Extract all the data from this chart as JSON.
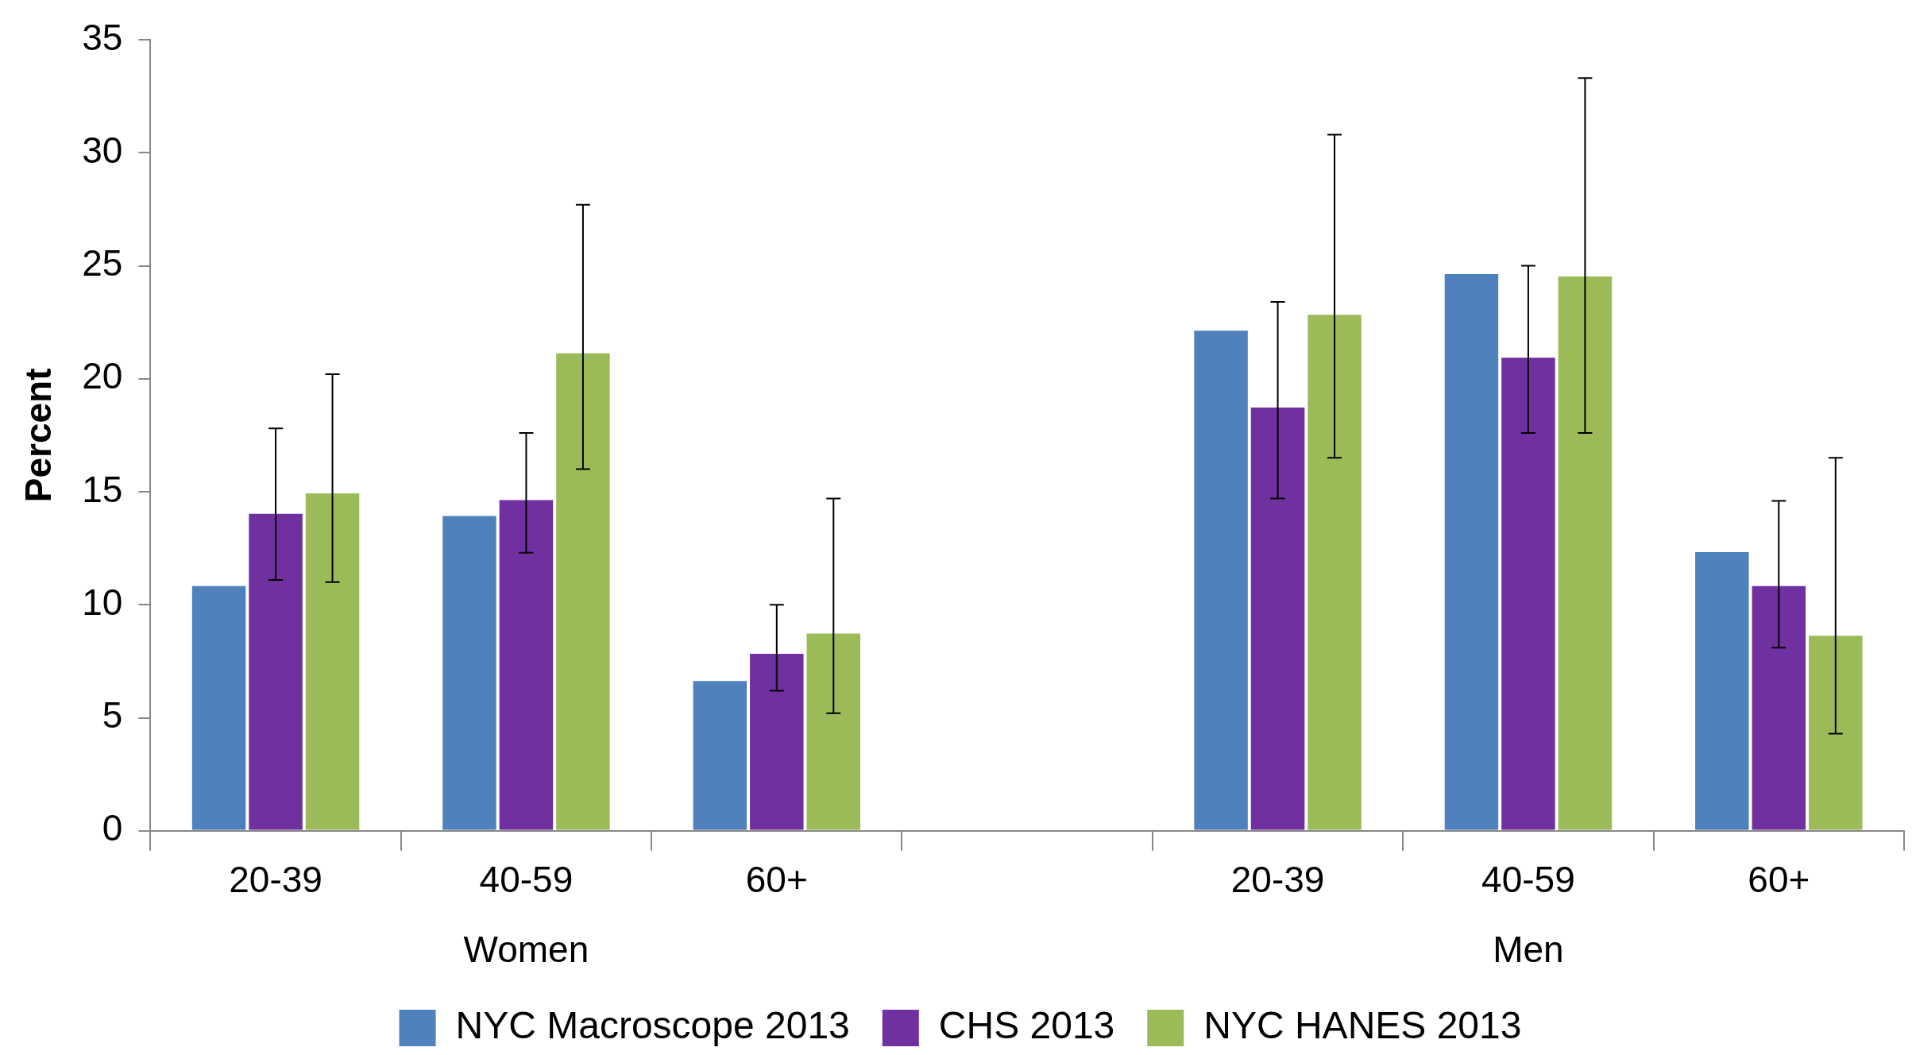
{
  "chart_data": {
    "type": "bar",
    "ylabel": "Percent",
    "categories": [
      "20-39",
      "40-59",
      "60+",
      null,
      "20-39",
      "40-59",
      "60+"
    ],
    "series": [
      {
        "name": "NYC Macroscope 2013",
        "color": "#4f81bd",
        "values": [
          10.9,
          14.0,
          6.7,
          null,
          22.2,
          24.7,
          12.4
        ]
      },
      {
        "name": "CHS 2013",
        "color": "#7030a0",
        "values": [
          14.1,
          14.7,
          7.9,
          null,
          18.8,
          21.0,
          10.9
        ],
        "errors": [
          [
            11.1,
            17.8
          ],
          [
            12.3,
            17.6
          ],
          [
            6.2,
            10.0
          ],
          null,
          [
            14.7,
            23.4
          ],
          [
            17.6,
            25.0
          ],
          [
            8.1,
            14.6
          ]
        ]
      },
      {
        "name": "NYC HANES 2013",
        "color": "#9bbb59",
        "values": [
          15.0,
          21.2,
          8.8,
          null,
          22.9,
          24.6,
          8.7
        ],
        "errors": [
          [
            11.0,
            20.2
          ],
          [
            16.0,
            27.7
          ],
          [
            5.2,
            14.7
          ],
          null,
          [
            16.5,
            30.8
          ],
          [
            17.6,
            33.3
          ],
          [
            4.3,
            16.5
          ]
        ]
      }
    ],
    "annotations": [
      "Women",
      "Men"
    ],
    "ylim": [
      0,
      35
    ],
    "yticks": [
      0,
      5,
      10,
      15,
      20,
      25,
      30,
      35
    ],
    "grid": false,
    "legend": "bottom"
  }
}
